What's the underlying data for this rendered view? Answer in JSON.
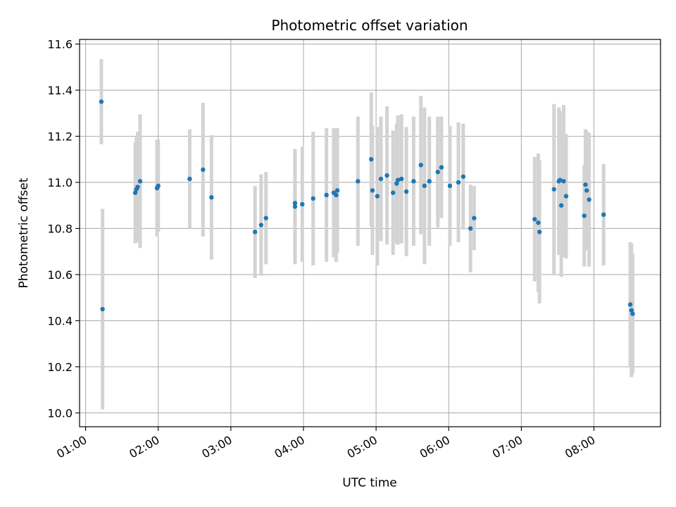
{
  "chart_data": {
    "type": "scatter",
    "title": "Photometric offset variation",
    "xlabel": "UTC time",
    "ylabel": "Photometric offset",
    "x_ticks": [
      "01:00",
      "02:00",
      "03:00",
      "04:00",
      "05:00",
      "06:00",
      "07:00",
      "08:00"
    ],
    "y_ticks": [
      "10.0",
      "10.2",
      "10.4",
      "10.6",
      "10.8",
      "11.0",
      "11.2",
      "11.4",
      "11.6"
    ],
    "xlim": [
      "00:55",
      "08:55"
    ],
    "ylim": [
      9.94,
      11.62
    ],
    "grid": true,
    "colors": {
      "points": "#1f77b4",
      "errorbars": "#d3d3d3",
      "grid": "#b0b0b0"
    },
    "series": [
      {
        "x": [
          "01:13",
          "01:14",
          "01:41",
          "01:42",
          "01:43",
          "01:45",
          "01:59",
          "02:00",
          "02:26",
          "02:37",
          "02:44",
          "03:20",
          "03:25",
          "03:29",
          "03:53",
          "03:53",
          "03:59",
          "04:08",
          "04:19",
          "04:25",
          "04:27",
          "04:28",
          "04:45",
          "04:56",
          "04:57",
          "05:01",
          "05:04",
          "05:09",
          "05:14",
          "05:17",
          "05:18",
          "05:21",
          "05:25",
          "05:31",
          "05:37",
          "05:40",
          "05:44",
          "05:51",
          "05:54",
          "06:01",
          "06:08",
          "06:12",
          "06:18",
          "06:21",
          "07:11",
          "07:14",
          "07:15",
          "07:27",
          "07:31",
          "07:32",
          "07:33",
          "07:35",
          "07:37",
          "07:52",
          "07:53",
          "07:54",
          "07:56",
          "08:08",
          "08:30",
          "08:31",
          "08:32"
        ],
        "y": [
          11.35,
          10.45,
          10.955,
          10.97,
          10.98,
          11.005,
          10.975,
          10.985,
          11.015,
          11.055,
          10.935,
          10.785,
          10.815,
          10.845,
          10.895,
          10.91,
          10.905,
          10.93,
          10.945,
          10.955,
          10.945,
          10.965,
          11.005,
          11.1,
          10.965,
          10.94,
          11.015,
          11.03,
          10.955,
          10.995,
          11.01,
          11.015,
          10.96,
          11.005,
          11.075,
          10.985,
          11.005,
          11.045,
          11.065,
          10.985,
          11.0,
          11.025,
          10.8,
          10.845,
          10.84,
          10.825,
          10.785,
          10.97,
          11.005,
          11.01,
          10.9,
          11.005,
          10.94,
          10.855,
          10.99,
          10.965,
          10.925,
          10.86,
          10.47,
          10.445,
          10.43
        ],
        "err": [
          0.185,
          0.435,
          0.22,
          0.23,
          0.24,
          0.29,
          0.21,
          0.2,
          0.215,
          0.29,
          0.27,
          0.2,
          0.22,
          0.2,
          0.25,
          0.22,
          0.25,
          0.29,
          0.29,
          0.28,
          0.29,
          0.27,
          0.28,
          0.29,
          0.28,
          0.3,
          0.27,
          0.3,
          0.27,
          0.26,
          0.28,
          0.28,
          0.28,
          0.28,
          0.3,
          0.34,
          0.28,
          0.24,
          0.22,
          0.26,
          0.26,
          0.23,
          0.19,
          0.14,
          0.27,
          0.3,
          0.31,
          0.37,
          0.32,
          0.3,
          0.31,
          0.33,
          0.27,
          0.22,
          0.24,
          0.26,
          0.29,
          0.22,
          0.27,
          0.29,
          0.26
        ]
      }
    ]
  }
}
